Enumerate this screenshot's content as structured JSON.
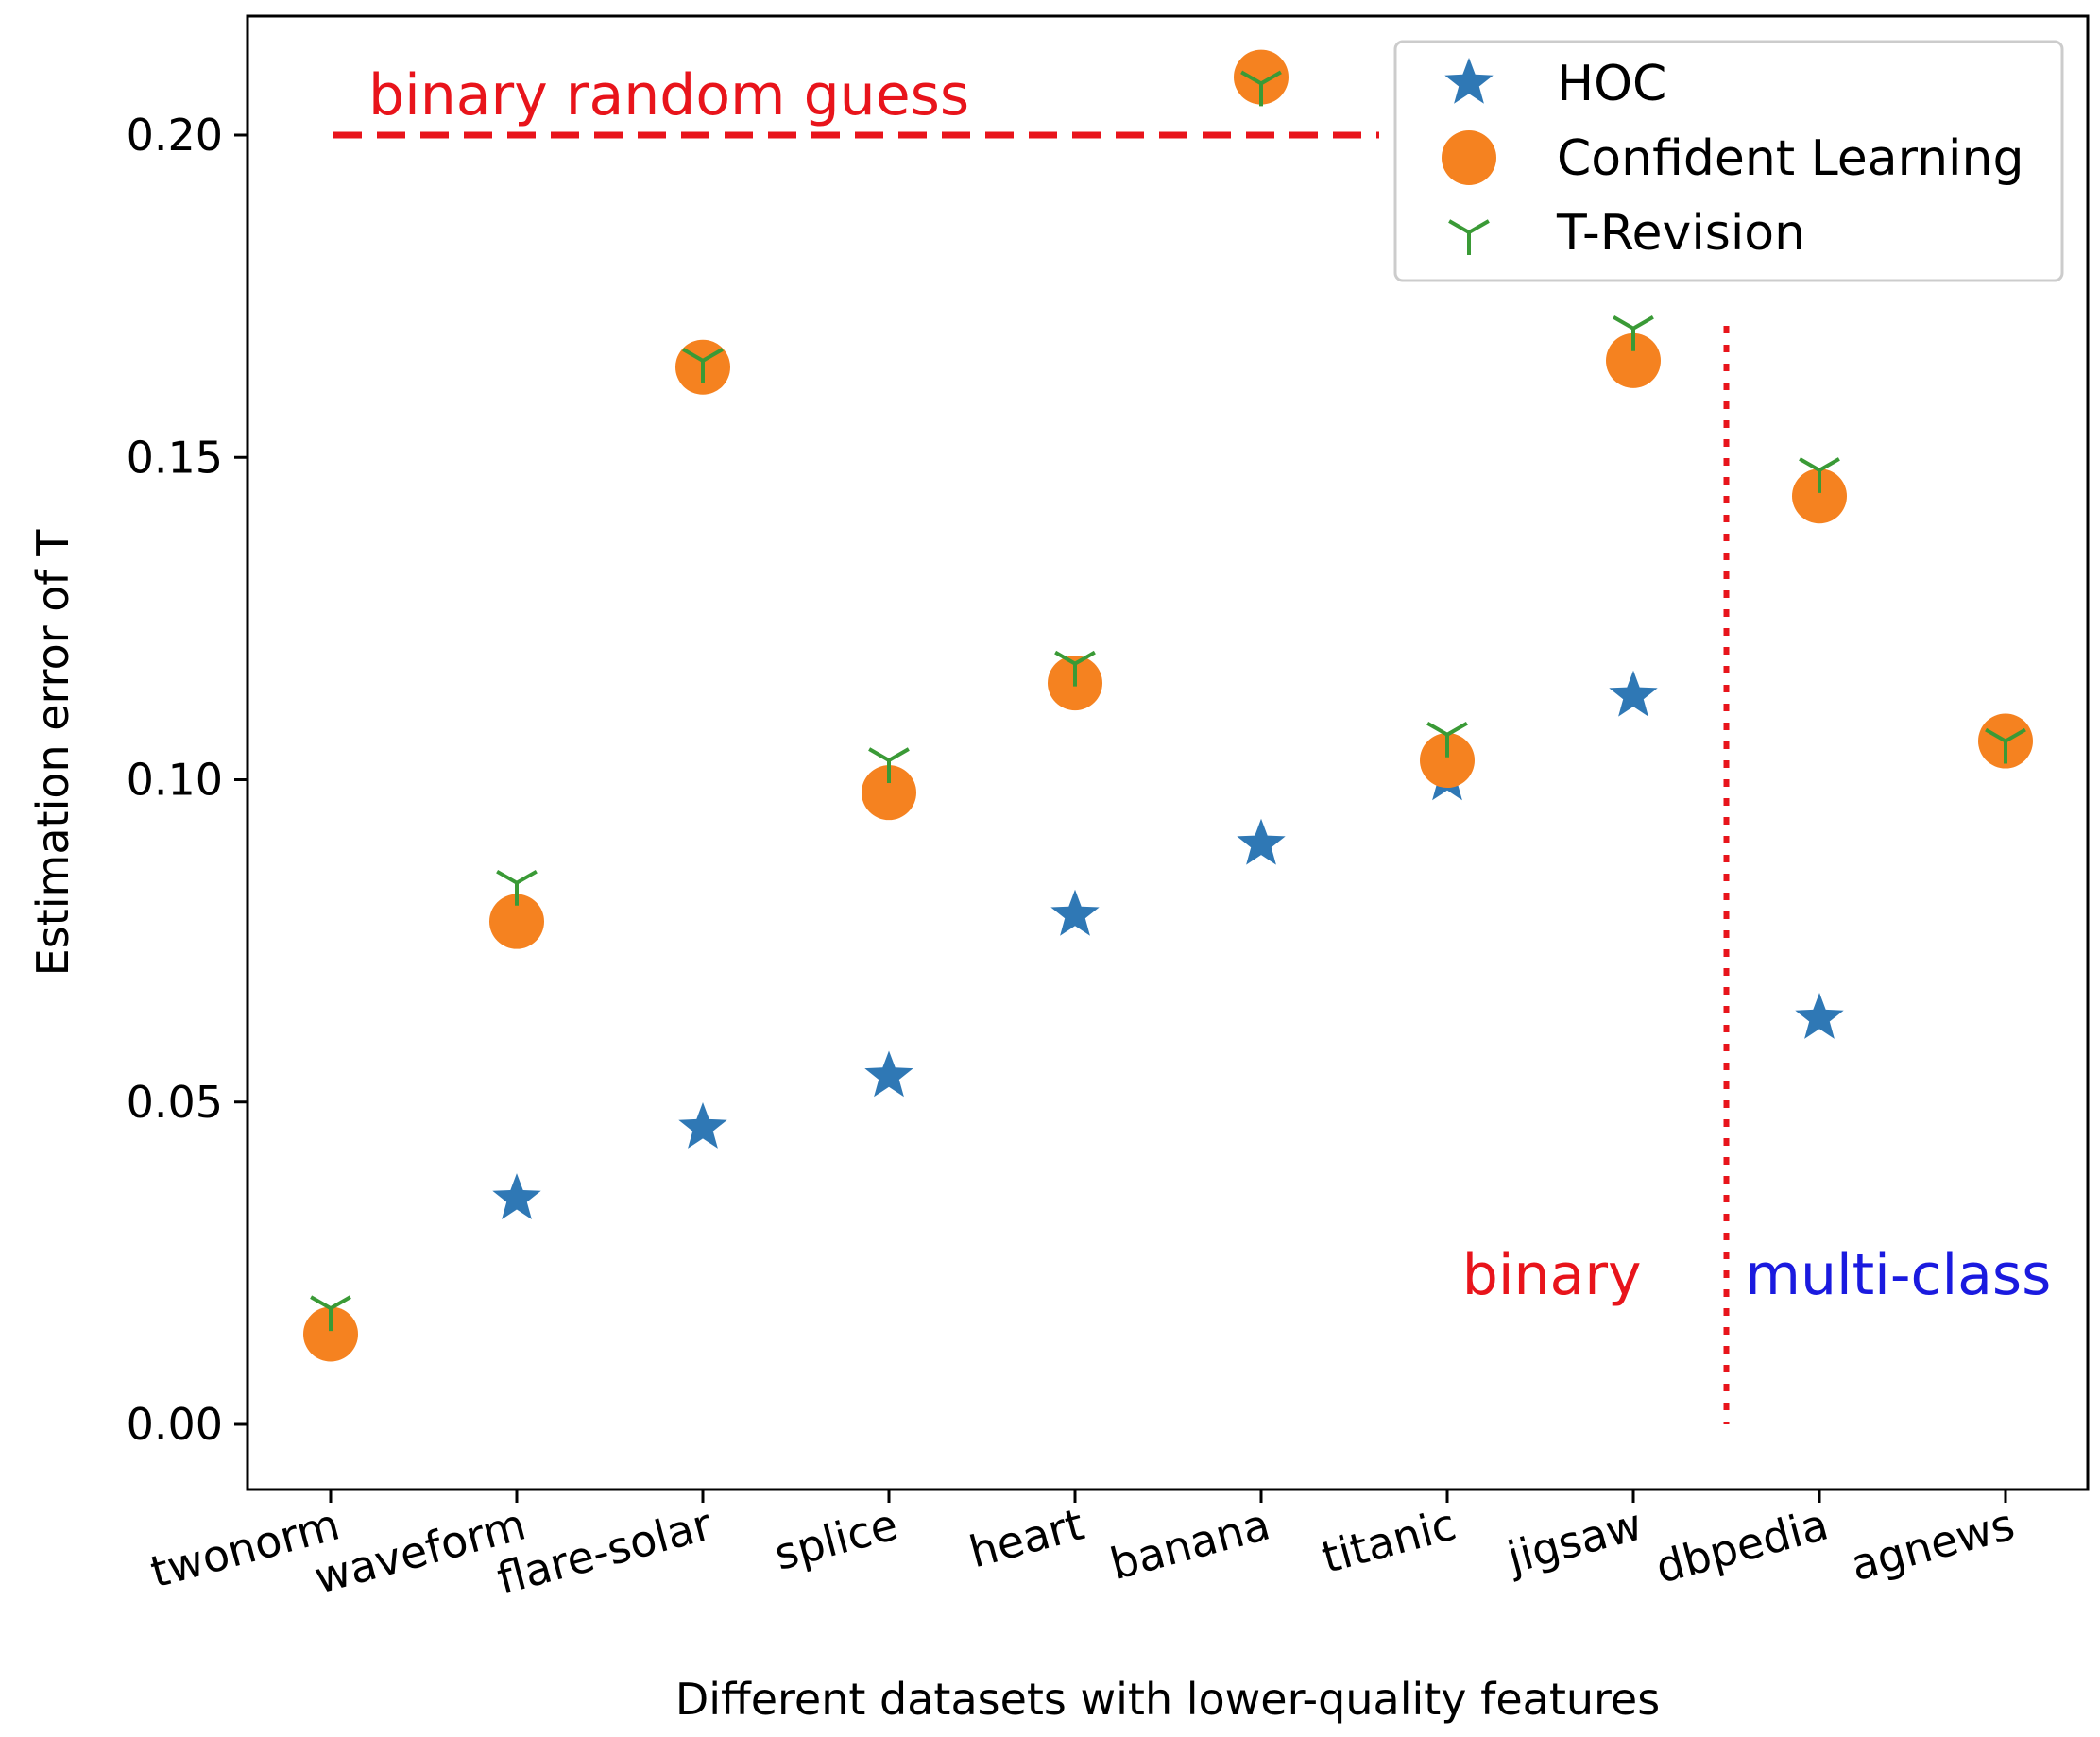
{
  "chart_data": {
    "type": "scatter",
    "xlabel": "Different datasets with lower-quality features",
    "ylabel": "Estimation error of T",
    "categories": [
      "twonorm",
      "waveform",
      "flare-solar",
      "splice",
      "heart",
      "banana",
      "titanic",
      "jigsaw",
      "dbpedia",
      "agnews"
    ],
    "ylim": [
      -0.01,
      0.218
    ],
    "yticks": [
      0.0,
      0.05,
      0.1,
      0.15,
      0.2
    ],
    "ytick_labels": [
      "0.00",
      "0.05",
      "0.10",
      "0.15",
      "0.20"
    ],
    "grid": false,
    "legend_position": "top-right",
    "series": [
      {
        "name": "HOC",
        "marker": "star",
        "color": "#2f78b5",
        "values": [
          null,
          0.035,
          0.046,
          0.054,
          0.079,
          0.09,
          0.1,
          0.113,
          0.063,
          null
        ]
      },
      {
        "name": "Confident Learning",
        "marker": "circle",
        "color": "#f58220",
        "values": [
          0.014,
          0.078,
          0.164,
          0.098,
          0.115,
          0.209,
          0.103,
          0.165,
          0.144,
          0.106
        ]
      },
      {
        "name": "T-Revision",
        "marker": "tri_down",
        "color": "#3a9a36",
        "values": [
          0.018,
          0.084,
          0.165,
          0.103,
          0.118,
          0.208,
          0.107,
          0.17,
          0.148,
          0.106
        ]
      }
    ],
    "annotations": {
      "random_guess": {
        "text": "binary random guess",
        "y": 0.2,
        "color": "#e8141b"
      },
      "binary": {
        "text": "binary",
        "color": "#e8141b"
      },
      "multi_class": {
        "text": "multi-class",
        "color": "#1a1adf"
      },
      "divider_color": "#e8141b"
    }
  }
}
